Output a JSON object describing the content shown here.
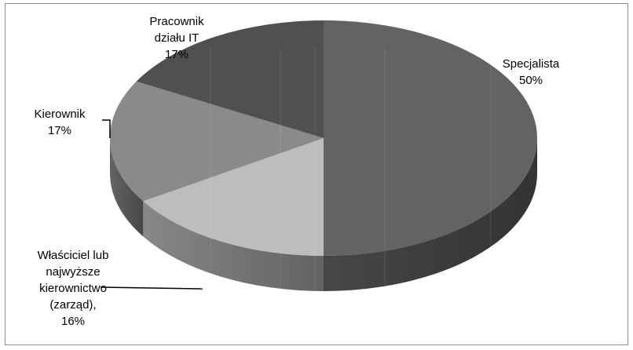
{
  "chart_data": {
    "type": "pie",
    "title": "",
    "three_d": true,
    "legend": "none",
    "slices": [
      {
        "label_lines": [
          "Specjalista",
          "50%"
        ],
        "value": 50,
        "color": "#636363"
      },
      {
        "label_lines": [
          "Właściciel lub",
          "najwyższe",
          "kierownictwo",
          "(zarząd),",
          "16%"
        ],
        "value": 16,
        "color": "#bdbdbd"
      },
      {
        "label_lines": [
          "Kierownik",
          "17%"
        ],
        "value": 17,
        "color": "#8a8a8a"
      },
      {
        "label_lines": [
          "Pracownik",
          "działu IT",
          "17%"
        ],
        "value": 17,
        "color": "#505050"
      }
    ]
  }
}
